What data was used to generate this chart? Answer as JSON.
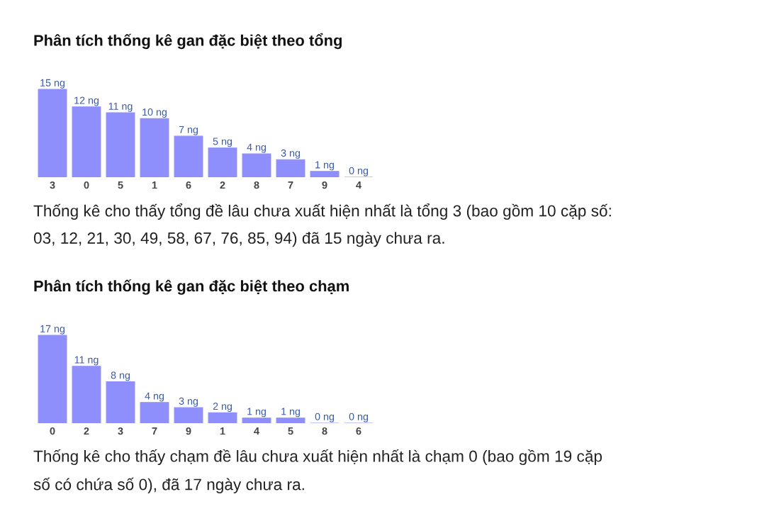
{
  "chart_data": [
    {
      "type": "bar",
      "title": "Phân tích thống kê gan đặc biệt theo tổng",
      "categories": [
        "3",
        "0",
        "5",
        "1",
        "6",
        "2",
        "8",
        "7",
        "9",
        "4"
      ],
      "values": [
        15,
        12,
        11,
        10,
        7,
        5,
        4,
        3,
        1,
        0
      ],
      "value_labels": [
        "15 ng",
        "12 ng",
        "11 ng",
        "10 ng",
        "7 ng",
        "5 ng",
        "4 ng",
        "3 ng",
        "1 ng",
        "0 ng"
      ],
      "color": "#8e8efc",
      "tick_labels": "x",
      "annotations": [
        "Thống kê cho thấy tổng đề lâu chưa xuất hiện nhất là tổng 3 (bao gồm 10 cặp số: 03, 12, 21, 30, 49, 58, 67, 76, 85, 94) đã 15 ngày chưa ra."
      ]
    },
    {
      "type": "bar",
      "title": "Phân tích thống kê gan đặc biệt theo chạm",
      "categories": [
        "0",
        "2",
        "3",
        "7",
        "9",
        "1",
        "4",
        "5",
        "8",
        "6"
      ],
      "values": [
        17,
        11,
        8,
        4,
        3,
        2,
        1,
        1,
        0,
        0
      ],
      "value_labels": [
        "17 ng",
        "11 ng",
        "8 ng",
        "4 ng",
        "3 ng",
        "2 ng",
        "1 ng",
        "1 ng",
        "0 ng",
        "0 ng"
      ],
      "color": "#8e8efc",
      "tick_labels": "x",
      "annotations": [
        "Thống kê cho thấy chạm đề lâu chưa xuất hiện nhất là chạm 0 (bao gồm 19 cặp số có chứa số 0), đã 17 ngày chưa ra."
      ]
    }
  ]
}
